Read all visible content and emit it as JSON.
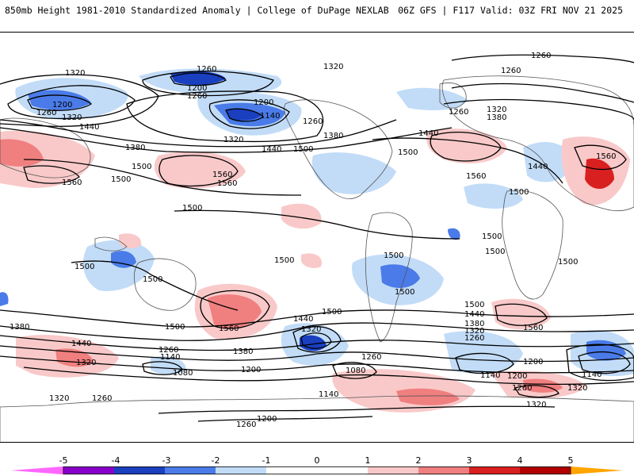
{
  "header": {
    "title": "850mb Height 1981-2010 Standardized Anomaly | College of DuPage NEXLAB",
    "run_info": "06Z GFS | F117 Valid: 03Z FRI NOV 21 2025"
  },
  "colors": {
    "neg5": "#ff66ff",
    "neg4": "#8800cc",
    "neg3": "#1a3fbf",
    "neg2": "#4a7be8",
    "neg1": "#c2dcf7",
    "zero": "#ffffff",
    "pos1": "#f9c9c9",
    "pos2": "#f07f7f",
    "pos3": "#d92020",
    "pos4": "#b20000",
    "pos5": "#ffa500",
    "contour": "#000000",
    "land_outline": "#555555"
  },
  "colorbar": {
    "tick_labels": [
      "-5",
      "-4",
      "-3",
      "-2",
      "-1",
      "0",
      "1",
      "2",
      "3",
      "4",
      "5"
    ]
  },
  "contour_labels": {
    "l1320a": "1320",
    "l1260a": "1260",
    "l1200a": "1200",
    "l1260b": "1260",
    "l1320b": "1320",
    "l1200b": "1200",
    "l1260c": "1260",
    "l1140a": "1140",
    "l1200c": "1200",
    "l1260d": "1260",
    "l1320c": "1320",
    "l1380a": "1380",
    "l1440a": "1440",
    "l1380b": "1380",
    "l1440b": "1440",
    "l1500a": "1500",
    "l1560a": "1560",
    "l1500b": "1500",
    "l1560b": "1560",
    "l1560c": "1560",
    "l1320d": "1320",
    "l1260e": "1260",
    "l1320e": "1320",
    "l1380c": "1380",
    "l1260f": "1260",
    "l1440c": "1440",
    "l1500c": "1500",
    "l1560d": "1560",
    "l1440d": "1440",
    "l1560e": "1560",
    "l1500d": "1500",
    "l1500e": "1500",
    "l1500f": "1500",
    "l1500g": "1500",
    "l1500h": "1500",
    "l1500i": "1500",
    "l1500j": "1500",
    "l1500k": "1500",
    "l1500l": "1500",
    "l1500m": "1500",
    "l1560f": "1560",
    "l1500n": "1500",
    "l1440e": "1440",
    "l1320f": "1320",
    "l1500o": "1500",
    "l1440f": "1440",
    "l1380d": "1380",
    "l1320g": "1320",
    "l1260g": "1260",
    "l1560g": "1560",
    "l1380e": "1380",
    "l1440g": "1440",
    "l1320h": "1320",
    "l1260h": "1260",
    "l1140b": "1140",
    "l1080a": "1080",
    "l1200d": "1200",
    "l1260i": "1260",
    "l1080b": "1080",
    "l1140c": "1140",
    "l1200e": "1200",
    "l1140d": "1140",
    "l1200f": "1200",
    "l1260j": "1260",
    "l1320i": "1320",
    "l1320j": "1320",
    "l1260k": "1260",
    "l1200g": "1200",
    "l1260l": "1260",
    "l1140e": "1140",
    "l1320k": "1320"
  }
}
